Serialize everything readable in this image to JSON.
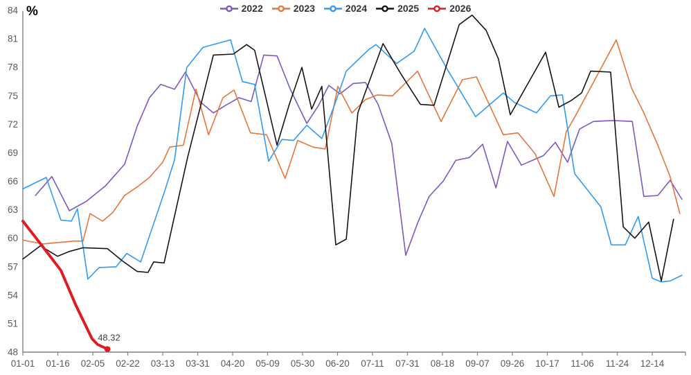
{
  "chart_data": {
    "type": "line",
    "title": "",
    "ylabel": "%",
    "xlabel": "",
    "ylim": [
      48,
      84
    ],
    "y_ticks": [
      48,
      51,
      54,
      57,
      60,
      63,
      66,
      69,
      72,
      75,
      78,
      81,
      84
    ],
    "x_tick_labels": [
      "01-01",
      "01-16",
      "02-05",
      "02-22",
      "03-13",
      "03-31",
      "04-20",
      "05-09",
      "05-30",
      "06-20",
      "07-11",
      "07-31",
      "08-18",
      "09-07",
      "09-26",
      "10-17",
      "11-06",
      "11-24",
      "12-14"
    ],
    "x_unit_note": "point x-coordinates are in tick intervals: 0 = 01-01 tick, 18 = 12-14 tick",
    "grid": false,
    "legend_position": "top-center",
    "series": [
      {
        "name": "2022",
        "color": "#7E57C5",
        "line_width": 1.6,
        "points": [
          [
            0.36,
            64.5
          ],
          [
            0.83,
            66.5
          ],
          [
            1.33,
            62.9
          ],
          [
            1.82,
            63.9
          ],
          [
            2.36,
            65.5
          ],
          [
            2.91,
            67.8
          ],
          [
            3.27,
            71.8
          ],
          [
            3.62,
            74.8
          ],
          [
            3.94,
            76.2
          ],
          [
            4.34,
            75.7
          ],
          [
            4.65,
            77.5
          ],
          [
            5.09,
            74.3
          ],
          [
            5.45,
            73.2
          ],
          [
            5.8,
            74.0
          ],
          [
            6.18,
            74.8
          ],
          [
            6.53,
            74.4
          ],
          [
            6.89,
            79.3
          ],
          [
            7.27,
            79.2
          ],
          [
            7.66,
            75.6
          ],
          [
            8.12,
            72.1
          ],
          [
            8.46,
            74.0
          ],
          [
            8.75,
            76.1
          ],
          [
            9.07,
            75.2
          ],
          [
            9.45,
            76.3
          ],
          [
            9.8,
            76.4
          ],
          [
            10.16,
            74.1
          ],
          [
            10.55,
            70.0
          ],
          [
            10.95,
            58.2
          ],
          [
            11.29,
            61.6
          ],
          [
            11.62,
            64.4
          ],
          [
            12.02,
            66.0
          ],
          [
            12.38,
            68.2
          ],
          [
            12.77,
            68.5
          ],
          [
            13.15,
            69.9
          ],
          [
            13.53,
            65.3
          ],
          [
            13.86,
            70.2
          ],
          [
            14.26,
            67.7
          ],
          [
            14.89,
            68.7
          ],
          [
            15.23,
            70.1
          ],
          [
            15.58,
            68.0
          ],
          [
            15.92,
            71.5
          ],
          [
            16.32,
            72.3
          ],
          [
            16.87,
            72.4
          ],
          [
            17.43,
            72.3
          ],
          [
            17.76,
            64.4
          ],
          [
            18.16,
            64.5
          ],
          [
            18.51,
            66.1
          ],
          [
            18.85,
            64.1
          ]
        ]
      },
      {
        "name": "2023",
        "color": "#E8743B",
        "line_width": 1.6,
        "points": [
          [
            0,
            59.8
          ],
          [
            0.57,
            59.4
          ],
          [
            1.45,
            59.7
          ],
          [
            1.72,
            59.7
          ],
          [
            1.92,
            62.6
          ],
          [
            2.28,
            61.8
          ],
          [
            2.57,
            62.7
          ],
          [
            2.91,
            64.5
          ],
          [
            3.27,
            65.4
          ],
          [
            3.62,
            66.4
          ],
          [
            4.0,
            68.0
          ],
          [
            4.2,
            69.6
          ],
          [
            4.59,
            69.8
          ],
          [
            4.95,
            75.7
          ],
          [
            5.31,
            70.9
          ],
          [
            5.72,
            74.8
          ],
          [
            6.04,
            75.6
          ],
          [
            6.51,
            71.1
          ],
          [
            6.97,
            70.9
          ],
          [
            7.5,
            66.3
          ],
          [
            7.86,
            70.3
          ],
          [
            8.3,
            69.6
          ],
          [
            8.65,
            69.4
          ],
          [
            9.01,
            76.0
          ],
          [
            9.41,
            73.2
          ],
          [
            9.8,
            74.6
          ],
          [
            10.14,
            75.1
          ],
          [
            10.57,
            75.0
          ],
          [
            11.29,
            77.6
          ],
          [
            11.96,
            72.3
          ],
          [
            12.57,
            76.7
          ],
          [
            12.97,
            77.0
          ],
          [
            13.74,
            70.9
          ],
          [
            14.16,
            71.1
          ],
          [
            14.65,
            68.9
          ],
          [
            15.19,
            64.4
          ],
          [
            15.54,
            71.2
          ],
          [
            15.82,
            73.0
          ],
          [
            16.97,
            80.9
          ],
          [
            17.41,
            75.8
          ],
          [
            17.76,
            73.2
          ],
          [
            18.16,
            69.8
          ],
          [
            18.51,
            66.5
          ],
          [
            18.79,
            62.6
          ]
        ]
      },
      {
        "name": "2024",
        "color": "#2E9BF5",
        "line_width": 1.6,
        "points": [
          [
            0,
            65.2
          ],
          [
            0.67,
            66.4
          ],
          [
            1.09,
            61.9
          ],
          [
            1.39,
            61.8
          ],
          [
            1.56,
            63.1
          ],
          [
            1.86,
            55.7
          ],
          [
            2.18,
            56.9
          ],
          [
            2.67,
            57.0
          ],
          [
            2.97,
            58.4
          ],
          [
            3.37,
            57.5
          ],
          [
            4.06,
            65.0
          ],
          [
            4.34,
            68.3
          ],
          [
            4.69,
            78.0
          ],
          [
            5.15,
            80.1
          ],
          [
            5.94,
            80.9
          ],
          [
            6.28,
            76.5
          ],
          [
            6.63,
            76.2
          ],
          [
            7.03,
            68.1
          ],
          [
            7.41,
            70.4
          ],
          [
            7.74,
            70.3
          ],
          [
            8.12,
            71.9
          ],
          [
            8.55,
            70.5
          ],
          [
            8.91,
            74.0
          ],
          [
            9.25,
            77.6
          ],
          [
            9.9,
            79.9
          ],
          [
            10.1,
            80.4
          ],
          [
            10.69,
            78.4
          ],
          [
            11.19,
            79.7
          ],
          [
            11.49,
            82.1
          ],
          [
            12.12,
            77.9
          ],
          [
            12.95,
            72.8
          ],
          [
            13.74,
            75.3
          ],
          [
            14.06,
            74.3
          ],
          [
            14.69,
            73.2
          ],
          [
            15.09,
            75.0
          ],
          [
            15.43,
            75.1
          ],
          [
            15.78,
            66.8
          ],
          [
            16.53,
            63.3
          ],
          [
            16.83,
            59.3
          ],
          [
            17.23,
            59.3
          ],
          [
            17.6,
            62.3
          ],
          [
            18.0,
            55.8
          ],
          [
            18.26,
            55.4
          ],
          [
            18.51,
            55.5
          ],
          [
            18.85,
            56.1
          ]
        ]
      },
      {
        "name": "2025",
        "color": "#141414",
        "line_width": 1.6,
        "points": [
          [
            0,
            57.8
          ],
          [
            0.5,
            59.2
          ],
          [
            0.99,
            58.1
          ],
          [
            1.33,
            58.6
          ],
          [
            1.72,
            59.0
          ],
          [
            2.42,
            58.9
          ],
          [
            2.85,
            57.6
          ],
          [
            3.27,
            56.5
          ],
          [
            3.58,
            56.4
          ],
          [
            3.74,
            57.5
          ],
          [
            4.04,
            57.4
          ],
          [
            4.71,
            68.5
          ],
          [
            5.45,
            79.3
          ],
          [
            6.02,
            79.4
          ],
          [
            6.4,
            80.4
          ],
          [
            6.63,
            79.8
          ],
          [
            7.27,
            69.8
          ],
          [
            7.62,
            74.1
          ],
          [
            7.98,
            78.0
          ],
          [
            8.26,
            73.6
          ],
          [
            8.55,
            76.0
          ],
          [
            8.95,
            59.3
          ],
          [
            9.25,
            59.9
          ],
          [
            9.58,
            73.2
          ],
          [
            10.3,
            80.5
          ],
          [
            10.83,
            77.2
          ],
          [
            11.37,
            74.1
          ],
          [
            11.76,
            74.0
          ],
          [
            12.48,
            82.5
          ],
          [
            12.85,
            83.5
          ],
          [
            13.25,
            81.9
          ],
          [
            13.6,
            78.9
          ],
          [
            13.94,
            73.0
          ],
          [
            14.95,
            79.6
          ],
          [
            15.33,
            73.8
          ],
          [
            15.68,
            74.5
          ],
          [
            15.98,
            75.3
          ],
          [
            16.24,
            77.6
          ],
          [
            16.81,
            77.5
          ],
          [
            17.17,
            61.2
          ],
          [
            17.5,
            60.0
          ],
          [
            17.9,
            61.7
          ],
          [
            18.26,
            55.5
          ],
          [
            18.61,
            62.0
          ]
        ]
      },
      {
        "name": "2026",
        "color": "#E11B22",
        "line_width": 4,
        "end_dot": true,
        "end_label": "48.32",
        "points": [
          [
            0,
            61.8
          ],
          [
            0.53,
            59.3
          ],
          [
            1.09,
            56.6
          ],
          [
            1.52,
            52.9
          ],
          [
            1.98,
            49.4
          ],
          [
            2.14,
            48.8
          ],
          [
            2.42,
            48.32
          ]
        ]
      }
    ],
    "annotation": {
      "text": "48.32"
    }
  }
}
